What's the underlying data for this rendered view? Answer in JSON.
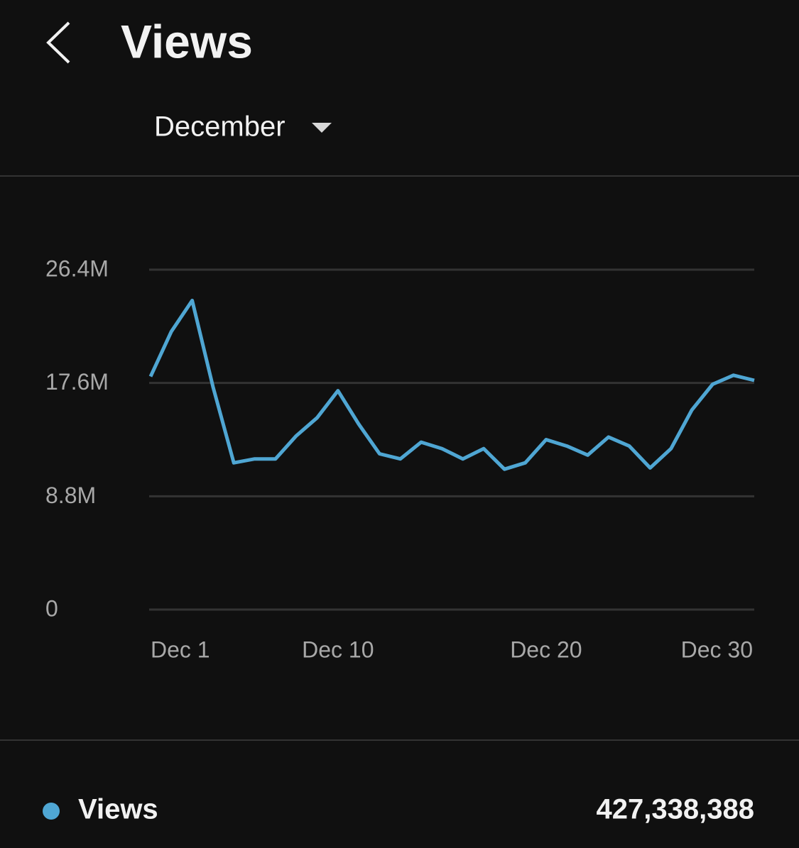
{
  "header": {
    "title": "Views"
  },
  "period": {
    "label": "December"
  },
  "chart_data": {
    "type": "line",
    "categories": [
      "Dec 1",
      null,
      null,
      null,
      null,
      null,
      null,
      null,
      null,
      "Dec 10",
      null,
      null,
      null,
      null,
      null,
      null,
      null,
      null,
      null,
      "Dec 20",
      null,
      null,
      null,
      null,
      null,
      null,
      null,
      null,
      null,
      "Dec 30"
    ],
    "series": [
      {
        "name": "Views",
        "color": "#4fa6d3",
        "values": [
          18100000,
          21600000,
          24000000,
          17300000,
          11400000,
          11700000,
          11700000,
          13500000,
          14900000,
          17000000,
          14400000,
          12100000,
          11700000,
          13000000,
          12500000,
          11700000,
          12500000,
          10900000,
          11400000,
          13200000,
          12700000,
          12000000,
          13400000,
          12700000,
          11000000,
          12500000,
          15500000,
          17500000,
          18200000,
          17800000
        ]
      }
    ],
    "ylim": [
      0,
      26400000
    ],
    "yticks": [
      0,
      {
        "value": 8800000,
        "label": "8.8M"
      },
      {
        "value": 17600000,
        "label": "17.6M"
      },
      {
        "value": 26400000,
        "label": "26.4M"
      }
    ],
    "grid": true
  },
  "summary": {
    "total": "427,338,388"
  }
}
